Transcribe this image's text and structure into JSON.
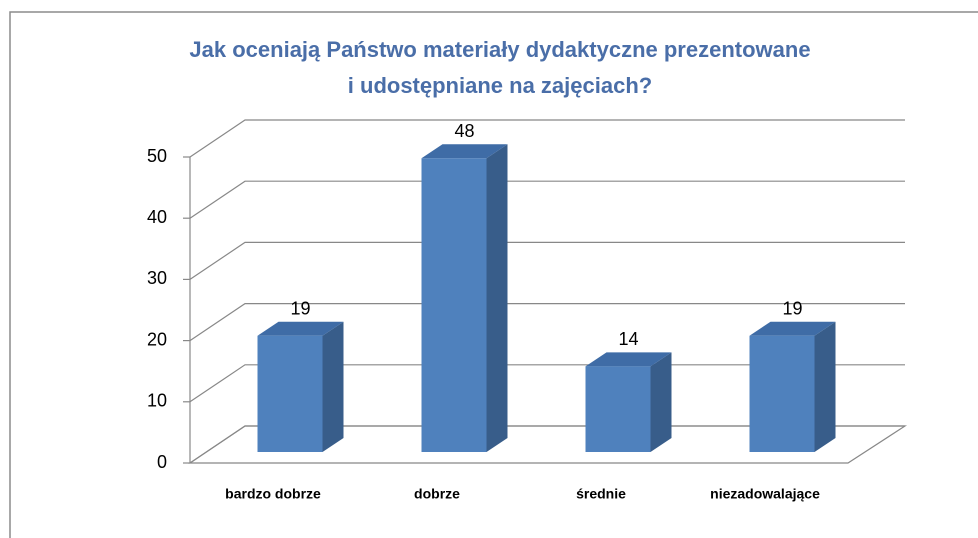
{
  "chart_data": {
    "type": "bar",
    "title": [
      "Jak oceniają Państwo materiały dydaktyczne prezentowane",
      "i udostępniane na zajęciach?"
    ],
    "categories": [
      "bardzo dobrze",
      "dobrze",
      "średnie",
      "niezadowalające"
    ],
    "values": [
      19,
      48,
      14,
      19
    ],
    "color": "#4f81bd",
    "ylim": [
      0,
      50
    ],
    "yticks": [
      0,
      10,
      20,
      30,
      40,
      50
    ],
    "grid": true
  }
}
